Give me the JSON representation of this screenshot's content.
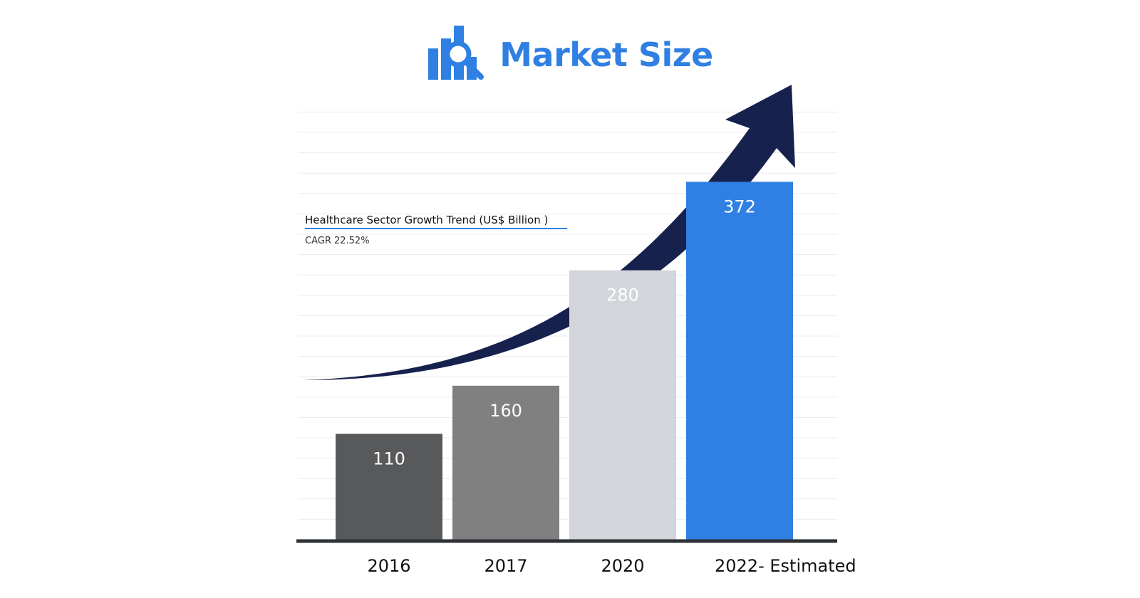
{
  "brand": {
    "title": "Market Size",
    "logo_icon": "bar-chart-magnifier-icon"
  },
  "colors": {
    "brand_blue": "#2f80e2",
    "arrow_navy": "#17214d",
    "gridline": "#ececec",
    "baseline": "#2e3136"
  },
  "chart_data": {
    "type": "bar",
    "title": "Healthcare Sector Growth Trend (US$ Billion )",
    "subtitle": "CAGR 22.52%",
    "categories": [
      "2016",
      "2017",
      "2020",
      "2022- Estimated"
    ],
    "values": [
      110,
      160,
      280,
      372
    ],
    "bar_colors": [
      "#58595b",
      "#808080",
      "#d2d5d9",
      "#2f80e2"
    ],
    "ylim": [
      0,
      450
    ],
    "grid": true,
    "xlabel": "",
    "ylabel": "",
    "annotation": "upward-growth-arrow-icon"
  }
}
